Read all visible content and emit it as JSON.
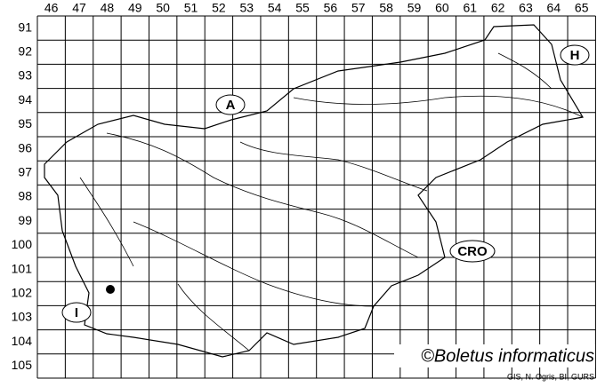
{
  "columns": [
    46,
    47,
    48,
    49,
    50,
    51,
    52,
    53,
    54,
    55,
    56,
    57,
    58,
    59,
    60,
    61,
    62,
    63,
    64,
    65
  ],
  "rows": [
    91,
    92,
    93,
    94,
    95,
    96,
    97,
    98,
    99,
    100,
    101,
    102,
    103,
    104,
    105
  ],
  "country_labels": [
    "A",
    "H",
    "CRO",
    "I"
  ],
  "copyright": "©Boletus informaticus",
  "credit": "GIS, N. Ogris, BI, GURS"
}
